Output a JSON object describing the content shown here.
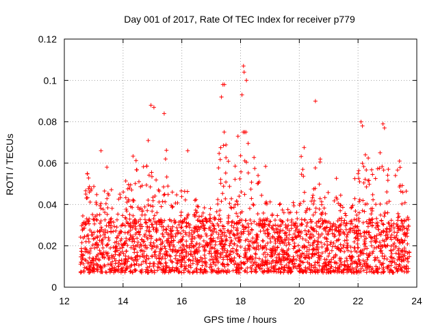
{
  "chart_data": {
    "type": "scatter",
    "title": "Day 001 of 2017, Rate Of TEC Index for receiver p779",
    "xlabel": "GPS time / hours",
    "ylabel": "ROTI / TECUs",
    "xlim": [
      12,
      24
    ],
    "ylim": [
      0,
      0.12
    ],
    "xticks": [
      12,
      14,
      16,
      18,
      20,
      22,
      24
    ],
    "xtick_labels": [
      "12",
      "14",
      "16",
      "18",
      "20",
      "22",
      "24"
    ],
    "yticks": [
      0,
      0.02,
      0.04,
      0.06,
      0.08,
      0.1,
      0.12
    ],
    "ytick_labels": [
      "0",
      "0.02",
      "0.04",
      "0.06",
      "0.08",
      "0.1",
      "0.12"
    ],
    "grid": true,
    "marker": "+",
    "color": "#ff0000",
    "x_range_of_data": [
      12.55,
      23.75
    ],
    "typical_y_range": [
      0.005,
      0.04
    ],
    "notable_points": [
      {
        "x": 13.25,
        "y": 0.066
      },
      {
        "x": 13.45,
        "y": 0.058
      },
      {
        "x": 14.95,
        "y": 0.088
      },
      {
        "x": 15.05,
        "y": 0.087
      },
      {
        "x": 15.4,
        "y": 0.084
      },
      {
        "x": 16.2,
        "y": 0.066
      },
      {
        "x": 17.4,
        "y": 0.098
      },
      {
        "x": 17.45,
        "y": 0.098
      },
      {
        "x": 17.35,
        "y": 0.092
      },
      {
        "x": 18.1,
        "y": 0.107
      },
      {
        "x": 18.12,
        "y": 0.104
      },
      {
        "x": 18.2,
        "y": 0.1
      },
      {
        "x": 18.05,
        "y": 0.093
      },
      {
        "x": 20.55,
        "y": 0.09
      },
      {
        "x": 22.1,
        "y": 0.08
      },
      {
        "x": 22.15,
        "y": 0.078
      },
      {
        "x": 22.85,
        "y": 0.079
      },
      {
        "x": 22.9,
        "y": 0.077
      },
      {
        "x": 22.25,
        "y": 0.064
      },
      {
        "x": 22.75,
        "y": 0.065
      }
    ],
    "bursts": [
      {
        "x": 12.85,
        "amp": 0.025,
        "w": 0.25
      },
      {
        "x": 13.5,
        "amp": 0.018,
        "w": 0.3
      },
      {
        "x": 14.3,
        "amp": 0.025,
        "w": 0.3
      },
      {
        "x": 14.9,
        "amp": 0.04,
        "w": 0.3
      },
      {
        "x": 15.4,
        "amp": 0.035,
        "w": 0.25
      },
      {
        "x": 16.2,
        "amp": 0.02,
        "w": 0.3
      },
      {
        "x": 17.4,
        "amp": 0.045,
        "w": 0.25
      },
      {
        "x": 18.1,
        "amp": 0.055,
        "w": 0.3
      },
      {
        "x": 18.7,
        "amp": 0.025,
        "w": 0.3
      },
      {
        "x": 20.1,
        "amp": 0.03,
        "w": 0.25
      },
      {
        "x": 20.6,
        "amp": 0.03,
        "w": 0.25
      },
      {
        "x": 21.3,
        "amp": 0.02,
        "w": 0.3
      },
      {
        "x": 22.2,
        "amp": 0.04,
        "w": 0.3
      },
      {
        "x": 22.8,
        "amp": 0.04,
        "w": 0.3
      },
      {
        "x": 23.4,
        "amp": 0.025,
        "w": 0.25
      }
    ]
  }
}
